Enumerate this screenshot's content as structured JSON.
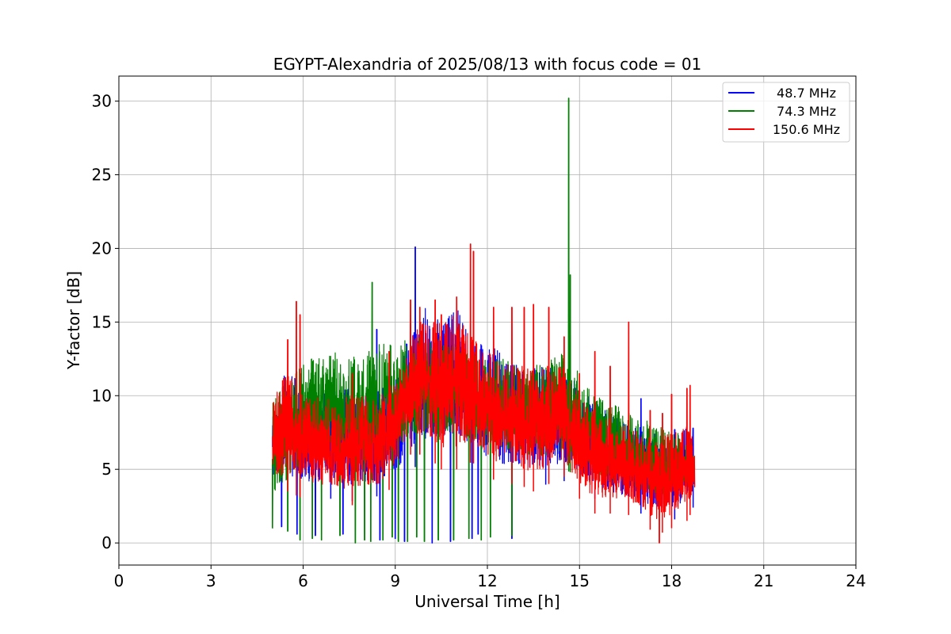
{
  "chart_data": {
    "type": "line",
    "title": "EGYPT-Alexandria of 2025/08/13 with focus code = 01",
    "xlabel": "Universal Time [h]",
    "ylabel": "Y-factor [dB]",
    "xlim": [
      0,
      24
    ],
    "ylim": [
      -1.5,
      31.7
    ],
    "xticks": [
      0,
      3,
      6,
      9,
      12,
      15,
      18,
      21,
      24
    ],
    "yticks": [
      0,
      5,
      10,
      15,
      20,
      25,
      30
    ],
    "xtick_labels": [
      "0",
      "3",
      "6",
      "9",
      "12",
      "15",
      "18",
      "21",
      "24"
    ],
    "ytick_labels": [
      "0",
      "5",
      "10",
      "15",
      "20",
      "25",
      "30"
    ],
    "grid": true,
    "legend_position": "top-right",
    "series": [
      {
        "name": "48.7 MHz",
        "color": "#0000ff",
        "envelope": {
          "t": [
            5.0,
            5.5,
            6.0,
            6.5,
            7.0,
            7.5,
            8.0,
            8.5,
            9.0,
            9.5,
            10.0,
            10.5,
            11.0,
            11.5,
            12.0,
            12.5,
            13.0,
            13.5,
            14.0,
            14.5,
            15.0,
            15.5,
            16.0,
            16.5,
            17.0,
            17.5,
            18.0,
            18.5,
            18.75
          ],
          "low": [
            3.5,
            3.0,
            3.2,
            3.0,
            3.0,
            2.8,
            3.0,
            3.2,
            3.5,
            5.0,
            5.5,
            5.5,
            6.0,
            5.0,
            4.5,
            4.0,
            4.0,
            3.8,
            4.0,
            4.2,
            3.5,
            3.0,
            2.5,
            2.2,
            2.0,
            1.5,
            1.5,
            2.0,
            2.5
          ],
          "high": [
            9.0,
            12.5,
            10.0,
            10.0,
            10.5,
            10.5,
            10.0,
            10.5,
            11.0,
            14.5,
            16.0,
            15.0,
            16.0,
            14.0,
            13.5,
            13.0,
            12.0,
            12.0,
            12.0,
            12.0,
            10.5,
            9.5,
            9.0,
            8.5,
            8.0,
            7.5,
            7.0,
            8.0,
            7.0
          ]
        },
        "spikes": [
          [
            6.9,
            9.5
          ],
          [
            7.6,
            10.1
          ],
          [
            8.4,
            14.5
          ],
          [
            8.6,
            10.5
          ],
          [
            9.65,
            20.1
          ],
          [
            13.9,
            10.0
          ],
          [
            14.5,
            11.5
          ],
          [
            15.5,
            9.2
          ],
          [
            17.0,
            9.8
          ],
          [
            18.1,
            7.7
          ],
          [
            18.7,
            7.8
          ]
        ],
        "dips": [
          [
            5.3,
            1.1
          ],
          [
            5.8,
            0.6
          ],
          [
            6.4,
            0.5
          ],
          [
            7.3,
            0.6
          ],
          [
            8.5,
            0.2
          ],
          [
            9.0,
            0.3
          ],
          [
            9.3,
            0.1
          ],
          [
            10.2,
            0.0
          ],
          [
            10.8,
            0.1
          ],
          [
            11.5,
            0.3
          ],
          [
            11.7,
            0.6
          ],
          [
            12.8,
            0.3
          ]
        ]
      },
      {
        "name": "74.3 MHz",
        "color": "#008000",
        "envelope": {
          "t": [
            5.0,
            5.5,
            6.0,
            6.5,
            7.0,
            7.5,
            8.0,
            8.5,
            9.0,
            9.5,
            10.0,
            10.5,
            11.0,
            11.5,
            12.0,
            12.5,
            13.0,
            13.5,
            14.0,
            14.5,
            15.0,
            15.5,
            16.0,
            16.5,
            17.0,
            17.5,
            18.0,
            18.5,
            18.75
          ],
          "low": [
            2.0,
            2.5,
            4.0,
            5.0,
            4.5,
            4.5,
            4.5,
            4.0,
            5.0,
            6.0,
            6.5,
            6.0,
            6.5,
            6.0,
            5.5,
            5.0,
            5.0,
            4.5,
            4.5,
            5.0,
            4.5,
            3.8,
            3.2,
            3.0,
            2.8,
            2.5,
            2.5,
            2.8,
            3.0
          ],
          "high": [
            9.5,
            11.5,
            12.5,
            12.5,
            13.0,
            12.5,
            13.0,
            13.5,
            13.5,
            14.0,
            14.0,
            14.0,
            13.5,
            13.0,
            12.5,
            12.5,
            12.0,
            12.0,
            12.5,
            13.0,
            11.5,
            10.0,
            9.5,
            9.0,
            8.5,
            8.0,
            7.5,
            8.0,
            6.5
          ],
          "high_lag": [
            12.8,
            13.2
          ]
        },
        "spikes": [
          [
            8.25,
            17.7
          ],
          [
            14.65,
            30.2
          ],
          [
            14.7,
            18.2
          ]
        ],
        "dips": [
          [
            5.0,
            1.0
          ],
          [
            5.5,
            0.8
          ],
          [
            5.9,
            0.2
          ],
          [
            6.3,
            0.3
          ],
          [
            6.6,
            0.2
          ],
          [
            7.2,
            0.5
          ],
          [
            7.7,
            0.0
          ],
          [
            8.0,
            0.2
          ],
          [
            8.2,
            0.1
          ],
          [
            8.6,
            0.2
          ],
          [
            8.9,
            0.4
          ],
          [
            9.1,
            0.1
          ],
          [
            9.4,
            0.1
          ],
          [
            9.7,
            0.4
          ],
          [
            9.95,
            0.1
          ],
          [
            10.4,
            0.2
          ],
          [
            10.9,
            0.2
          ],
          [
            11.4,
            0.3
          ],
          [
            11.8,
            0.2
          ],
          [
            12.1,
            0.4
          ],
          [
            12.8,
            0.5
          ]
        ]
      },
      {
        "name": "150.6 MHz",
        "color": "#ff0000",
        "envelope": {
          "t": [
            5.0,
            5.5,
            6.0,
            6.5,
            7.0,
            7.5,
            8.0,
            8.5,
            9.0,
            9.5,
            10.0,
            10.5,
            11.0,
            11.5,
            12.0,
            12.5,
            13.0,
            13.5,
            14.0,
            14.5,
            15.0,
            15.5,
            16.0,
            16.5,
            17.0,
            17.5,
            18.0,
            18.5,
            18.75
          ],
          "low": [
            3.5,
            3.5,
            3.0,
            2.8,
            2.7,
            2.5,
            2.8,
            3.0,
            4.0,
            6.0,
            6.0,
            5.0,
            5.0,
            5.5,
            4.5,
            4.0,
            4.0,
            3.5,
            4.0,
            4.5,
            3.0,
            2.0,
            2.0,
            2.0,
            1.5,
            0.5,
            1.0,
            1.5,
            2.5
          ],
          "high": [
            9.5,
            12.0,
            10.0,
            10.0,
            10.0,
            10.0,
            10.0,
            10.0,
            11.0,
            14.5,
            15.5,
            15.0,
            15.5,
            14.0,
            13.0,
            12.5,
            12.0,
            12.0,
            12.0,
            12.0,
            10.0,
            9.0,
            8.5,
            8.0,
            7.5,
            7.0,
            7.5,
            8.0,
            7.0
          ]
        },
        "spikes": [
          [
            5.5,
            13.8
          ],
          [
            5.78,
            16.4
          ],
          [
            5.9,
            15.5
          ],
          [
            7.6,
            11.5
          ],
          [
            8.8,
            13.0
          ],
          [
            9.5,
            16.5
          ],
          [
            9.8,
            16.0
          ],
          [
            10.3,
            16.5
          ],
          [
            10.5,
            15.5
          ],
          [
            11.0,
            16.7
          ],
          [
            11.45,
            20.3
          ],
          [
            11.55,
            19.8
          ],
          [
            12.2,
            16.0
          ],
          [
            12.8,
            16.0
          ],
          [
            13.2,
            16.0
          ],
          [
            13.5,
            16.2
          ],
          [
            14.0,
            16.0
          ],
          [
            14.5,
            14.0
          ],
          [
            15.0,
            11.5
          ],
          [
            15.5,
            13.0
          ],
          [
            16.0,
            12.0
          ],
          [
            16.6,
            15.0
          ],
          [
            17.3,
            9.0
          ],
          [
            17.7,
            8.8
          ],
          [
            18.0,
            10.1
          ],
          [
            18.5,
            10.5
          ],
          [
            18.6,
            10.7
          ]
        ],
        "dips": [
          [
            17.6,
            0.0
          ]
        ]
      }
    ]
  }
}
